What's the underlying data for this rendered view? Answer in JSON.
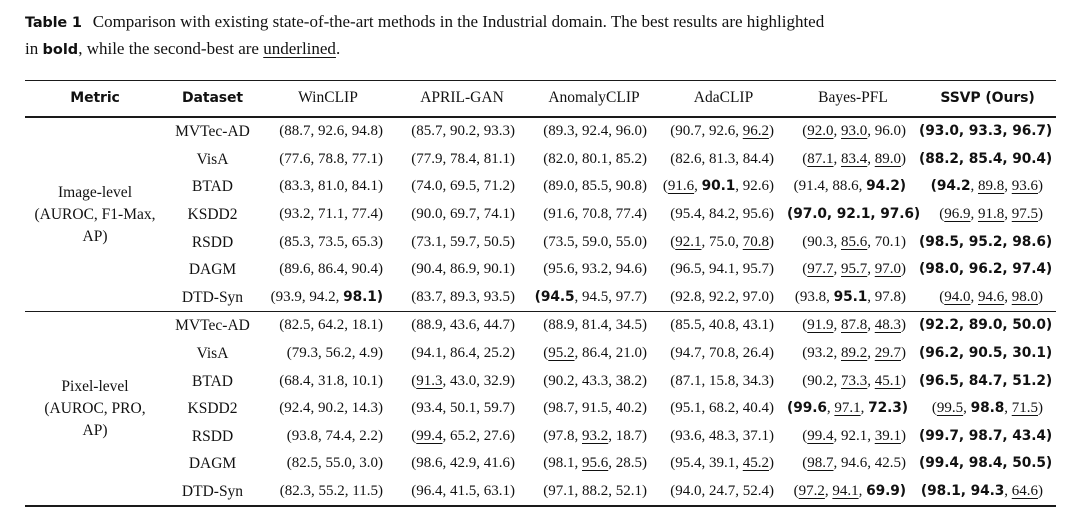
{
  "caption": {
    "label": "Table 1",
    "line1": "Comparison with existing state-of-the-art methods in the Industrial domain. The best results are highlighted",
    "line2_pre": "in ",
    "bold_word": "bold",
    "line2_mid": ", while the second-best are ",
    "underline_word": "underlined",
    "line2_end": "."
  },
  "colors": {
    "text": "#111111",
    "rule": "#1a1a1a",
    "background": "#ffffff"
  },
  "table": {
    "headers": [
      {
        "label": "Metric",
        "emph": true
      },
      {
        "label": "Dataset",
        "emph": true
      },
      {
        "label": "WinCLIP",
        "emph": false
      },
      {
        "label": "APRIL-GAN",
        "emph": false
      },
      {
        "label": "AnomalyCLIP",
        "emph": false
      },
      {
        "label": "AdaCLIP",
        "emph": false
      },
      {
        "label": "Bayes-PFL",
        "emph": false
      },
      {
        "label": "SSVP (Ours)",
        "emph": true
      }
    ],
    "sections": [
      {
        "metric_lines": [
          "Image-level",
          "(AUROC, F1-Max,",
          "AP)"
        ],
        "rows": [
          {
            "dataset": "MVTec-AD",
            "cells": [
              {
                "v": [
                  "88.7",
                  "92.6",
                  "94.8"
                ],
                "s": "nnn"
              },
              {
                "v": [
                  "85.7",
                  "90.2",
                  "93.3"
                ],
                "s": "nnn"
              },
              {
                "v": [
                  "89.3",
                  "92.4",
                  "96.0"
                ],
                "s": "nnn"
              },
              {
                "v": [
                  "90.7",
                  "92.6",
                  "96.2"
                ],
                "s": "nnu"
              },
              {
                "v": [
                  "92.0",
                  "93.0",
                  "96.0"
                ],
                "s": "uun"
              },
              {
                "v": [
                  "93.0",
                  "93.3",
                  "96.7"
                ],
                "s": "bbb"
              }
            ]
          },
          {
            "dataset": "VisA",
            "cells": [
              {
                "v": [
                  "77.6",
                  "78.8",
                  "77.1"
                ],
                "s": "nnn"
              },
              {
                "v": [
                  "77.9",
                  "78.4",
                  "81.1"
                ],
                "s": "nnn"
              },
              {
                "v": [
                  "82.0",
                  "80.1",
                  "85.2"
                ],
                "s": "nnn"
              },
              {
                "v": [
                  "82.6",
                  "81.3",
                  "84.4"
                ],
                "s": "nnn"
              },
              {
                "v": [
                  "87.1",
                  "83.4",
                  "89.0"
                ],
                "s": "uuu"
              },
              {
                "v": [
                  "88.2",
                  "85.4",
                  "90.4"
                ],
                "s": "bbb"
              }
            ]
          },
          {
            "dataset": "BTAD",
            "cells": [
              {
                "v": [
                  "83.3",
                  "81.0",
                  "84.1"
                ],
                "s": "nnn"
              },
              {
                "v": [
                  "74.0",
                  "69.5",
                  "71.2"
                ],
                "s": "nnn"
              },
              {
                "v": [
                  "89.0",
                  "85.5",
                  "90.8"
                ],
                "s": "nnn"
              },
              {
                "v": [
                  "91.6",
                  "90.1",
                  "92.6"
                ],
                "s": "ubn"
              },
              {
                "v": [
                  "91.4",
                  "88.6",
                  "94.2"
                ],
                "s": "nnb"
              },
              {
                "v": [
                  "94.2",
                  "89.8",
                  "93.6"
                ],
                "s": "buu"
              }
            ]
          },
          {
            "dataset": "KSDD2",
            "cells": [
              {
                "v": [
                  "93.2",
                  "71.1",
                  "77.4"
                ],
                "s": "nnn"
              },
              {
                "v": [
                  "90.0",
                  "69.7",
                  "74.1"
                ],
                "s": "nnn"
              },
              {
                "v": [
                  "91.6",
                  "70.8",
                  "77.4"
                ],
                "s": "nnn"
              },
              {
                "v": [
                  "95.4",
                  "84.2",
                  "95.6"
                ],
                "s": "nnn"
              },
              {
                "v": [
                  "97.0",
                  "92.1",
                  "97.6"
                ],
                "s": "bbb"
              },
              {
                "v": [
                  "96.9",
                  "91.8",
                  "97.5"
                ],
                "s": "uuu"
              }
            ]
          },
          {
            "dataset": "RSDD",
            "cells": [
              {
                "v": [
                  "85.3",
                  "73.5",
                  "65.3"
                ],
                "s": "nnn"
              },
              {
                "v": [
                  "73.1",
                  "59.7",
                  "50.5"
                ],
                "s": "nnn"
              },
              {
                "v": [
                  "73.5",
                  "59.0",
                  "55.0"
                ],
                "s": "nnn"
              },
              {
                "v": [
                  "92.1",
                  "75.0",
                  "70.8"
                ],
                "s": "unu"
              },
              {
                "v": [
                  "90.3",
                  "85.6",
                  "70.1"
                ],
                "s": "nun"
              },
              {
                "v": [
                  "98.5",
                  "95.2",
                  "98.6"
                ],
                "s": "bbb"
              }
            ]
          },
          {
            "dataset": "DAGM",
            "cells": [
              {
                "v": [
                  "89.6",
                  "86.4",
                  "90.4"
                ],
                "s": "nnn"
              },
              {
                "v": [
                  "90.4",
                  "86.9",
                  "90.1"
                ],
                "s": "nnn"
              },
              {
                "v": [
                  "95.6",
                  "93.2",
                  "94.6"
                ],
                "s": "nnn"
              },
              {
                "v": [
                  "96.5",
                  "94.1",
                  "95.7"
                ],
                "s": "nnn"
              },
              {
                "v": [
                  "97.7",
                  "95.7",
                  "97.0"
                ],
                "s": "uuu"
              },
              {
                "v": [
                  "98.0",
                  "96.2",
                  "97.4"
                ],
                "s": "bbb"
              }
            ]
          },
          {
            "dataset": "DTD-Syn",
            "cells": [
              {
                "v": [
                  "93.9",
                  "94.2",
                  "98.1"
                ],
                "s": "nnb"
              },
              {
                "v": [
                  "83.7",
                  "89.3",
                  "93.5"
                ],
                "s": "nnn"
              },
              {
                "v": [
                  "94.5",
                  "94.5",
                  "97.7"
                ],
                "s": "bnn"
              },
              {
                "v": [
                  "92.8",
                  "92.2",
                  "97.0"
                ],
                "s": "nnn"
              },
              {
                "v": [
                  "93.8",
                  "95.1",
                  "97.8"
                ],
                "s": "nbn"
              },
              {
                "v": [
                  "94.0",
                  "94.6",
                  "98.0"
                ],
                "s": "uuu"
              }
            ]
          }
        ]
      },
      {
        "metric_lines": [
          "Pixel-level",
          "(AUROC, PRO,",
          "AP)"
        ],
        "rows": [
          {
            "dataset": "MVTec-AD",
            "cells": [
              {
                "v": [
                  "82.5",
                  "64.2",
                  "18.1"
                ],
                "s": "nnn"
              },
              {
                "v": [
                  "88.9",
                  "43.6",
                  "44.7"
                ],
                "s": "nnn"
              },
              {
                "v": [
                  "88.9",
                  "81.4",
                  "34.5"
                ],
                "s": "nnn"
              },
              {
                "v": [
                  "85.5",
                  "40.8",
                  "43.1"
                ],
                "s": "nnn"
              },
              {
                "v": [
                  "91.9",
                  "87.8",
                  "48.3"
                ],
                "s": "uuu"
              },
              {
                "v": [
                  "92.2",
                  "89.0",
                  "50.0"
                ],
                "s": "bbb"
              }
            ]
          },
          {
            "dataset": "VisA",
            "cells": [
              {
                "v": [
                  "79.3",
                  "56.2",
                  "4.9"
                ],
                "s": "nnn"
              },
              {
                "v": [
                  "94.1",
                  "86.4",
                  "25.2"
                ],
                "s": "nnn"
              },
              {
                "v": [
                  "95.2",
                  "86.4",
                  "21.0"
                ],
                "s": "unn"
              },
              {
                "v": [
                  "94.7",
                  "70.8",
                  "26.4"
                ],
                "s": "nnn"
              },
              {
                "v": [
                  "93.2",
                  "89.2",
                  "29.7"
                ],
                "s": "nuu"
              },
              {
                "v": [
                  "96.2",
                  "90.5",
                  "30.1"
                ],
                "s": "bbb"
              }
            ]
          },
          {
            "dataset": "BTAD",
            "cells": [
              {
                "v": [
                  "68.4",
                  "31.8",
                  "10.1"
                ],
                "s": "nnn"
              },
              {
                "v": [
                  "91.3",
                  "43.0",
                  "32.9"
                ],
                "s": "unn"
              },
              {
                "v": [
                  "90.2",
                  "43.3",
                  "38.2"
                ],
                "s": "nnn"
              },
              {
                "v": [
                  "87.1",
                  "15.8",
                  "34.3"
                ],
                "s": "nnn"
              },
              {
                "v": [
                  "90.2",
                  "73.3",
                  "45.1"
                ],
                "s": "nuu"
              },
              {
                "v": [
                  "96.5",
                  "84.7",
                  "51.2"
                ],
                "s": "bbb"
              }
            ]
          },
          {
            "dataset": "KSDD2",
            "cells": [
              {
                "v": [
                  "92.4",
                  "90.2",
                  "14.3"
                ],
                "s": "nnn"
              },
              {
                "v": [
                  "93.4",
                  "50.1",
                  "59.7"
                ],
                "s": "nnn"
              },
              {
                "v": [
                  "98.7",
                  "91.5",
                  "40.2"
                ],
                "s": "nnn"
              },
              {
                "v": [
                  "95.1",
                  "68.2",
                  "40.4"
                ],
                "s": "nnn"
              },
              {
                "v": [
                  "99.6",
                  "97.1",
                  "72.3"
                ],
                "s": "bub"
              },
              {
                "v": [
                  "99.5",
                  "98.8",
                  "71.5"
                ],
                "s": "ubu"
              }
            ]
          },
          {
            "dataset": "RSDD",
            "cells": [
              {
                "v": [
                  "93.8",
                  "74.4",
                  "2.2"
                ],
                "s": "nnn"
              },
              {
                "v": [
                  "99.4",
                  "65.2",
                  "27.6"
                ],
                "s": "unn"
              },
              {
                "v": [
                  "97.8",
                  "93.2",
                  "18.7"
                ],
                "s": "nun"
              },
              {
                "v": [
                  "93.6",
                  "48.3",
                  "37.1"
                ],
                "s": "nnn"
              },
              {
                "v": [
                  "99.4",
                  "92.1",
                  "39.1"
                ],
                "s": "unu"
              },
              {
                "v": [
                  "99.7",
                  "98.7",
                  "43.4"
                ],
                "s": "bbb"
              }
            ]
          },
          {
            "dataset": "DAGM",
            "cells": [
              {
                "v": [
                  "82.5",
                  "55.0",
                  "3.0"
                ],
                "s": "nnn"
              },
              {
                "v": [
                  "98.6",
                  "42.9",
                  "41.6"
                ],
                "s": "nnn"
              },
              {
                "v": [
                  "98.1",
                  "95.6",
                  "28.5"
                ],
                "s": "nun"
              },
              {
                "v": [
                  "95.4",
                  "39.1",
                  "45.2"
                ],
                "s": "nnu"
              },
              {
                "v": [
                  "98.7",
                  "94.6",
                  "42.5"
                ],
                "s": "unn"
              },
              {
                "v": [
                  "99.4",
                  "98.4",
                  "50.5"
                ],
                "s": "bbb"
              }
            ]
          },
          {
            "dataset": "DTD-Syn",
            "cells": [
              {
                "v": [
                  "82.3",
                  "55.2",
                  "11.5"
                ],
                "s": "nnn"
              },
              {
                "v": [
                  "96.4",
                  "41.5",
                  "63.1"
                ],
                "s": "nnn"
              },
              {
                "v": [
                  "97.1",
                  "88.2",
                  "52.1"
                ],
                "s": "nnn"
              },
              {
                "v": [
                  "94.0",
                  "24.7",
                  "52.4"
                ],
                "s": "nnn"
              },
              {
                "v": [
                  "97.2",
                  "94.1",
                  "69.9"
                ],
                "s": "uub"
              },
              {
                "v": [
                  "98.1",
                  "94.3",
                  "64.6"
                ],
                "s": "bbu"
              }
            ]
          }
        ]
      }
    ]
  }
}
